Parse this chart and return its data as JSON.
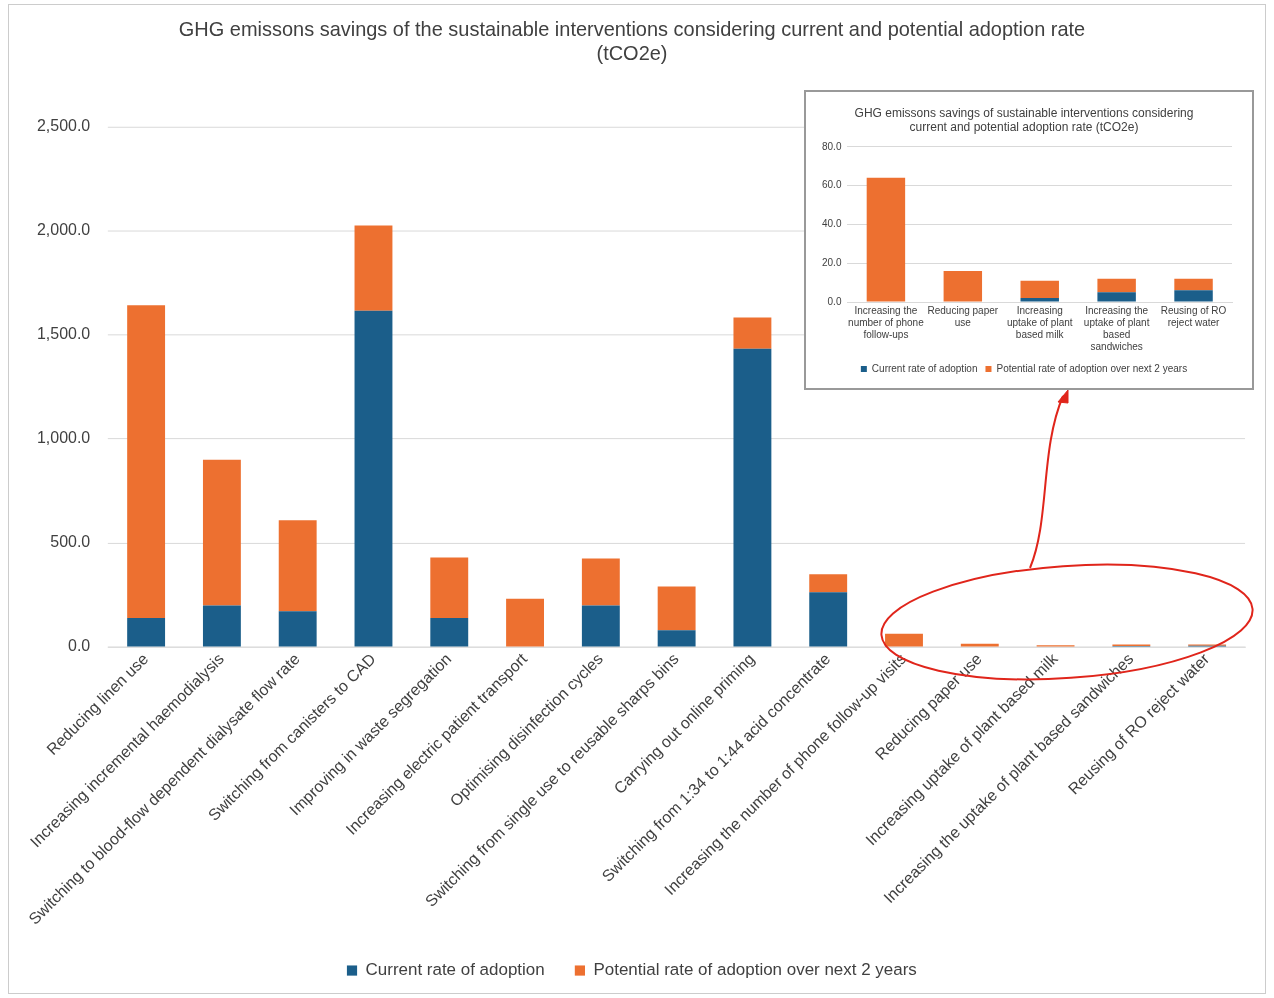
{
  "chart_data": [
    {
      "type": "bar",
      "title": "GHG emissons savings of the sustainable interventions considering current and potential adoption rate (tCO2e)",
      "stacked": true,
      "grid": "y",
      "legend": "bottom",
      "categories": [
        "Reducing linen use",
        "Increasing incremental haemodialysis",
        "Switching to blood-flow dependent dialysate flow rate",
        "Switching from canisters to CAD",
        "Improving in waste segregation",
        "Increasing electric patient transport",
        "Optimising disinfection cycles",
        "Switching from single use to reusable sharps bins",
        "Carrying out online priming",
        "Switching from 1:34 to 1:44 acid concentrate",
        "Increasing the number of phone follow-up visits",
        "Reducing paper use",
        "Increasing uptake of plant based milk",
        "Increasing the uptake of plant based sandwiches",
        "Reusing of RO reject water"
      ],
      "series": [
        {
          "name": "Current rate of adoption",
          "color": "#1b5e8a",
          "values": [
            140,
            200,
            172,
            1616,
            140,
            0,
            200,
            81,
            1433,
            264,
            0,
            0,
            null,
            5,
            6
          ]
        },
        {
          "name": "Potential rate of adoption over next 2 years",
          "color": "#ed7030",
          "values": [
            1503,
            700,
            437,
            410,
            291,
            232,
            226,
            210,
            151,
            86,
            64,
            16,
            9,
            7,
            6
          ]
        }
      ],
      "ylim": [
        0,
        2500
      ],
      "yticks": [
        {
          "value": 0,
          "label": "0.0"
        },
        {
          "value": 500,
          "label": "500.0"
        },
        {
          "value": 1000,
          "label": "1,000.0"
        },
        {
          "value": 1500,
          "label": "1,500.0"
        },
        {
          "value": 2000,
          "label": "2,000.0"
        },
        {
          "value": 2500,
          "label": "2,500.0"
        }
      ]
    },
    {
      "type": "bar",
      "title": "GHG emissons savings of sustainable interventions considering current and potential adoption rate (tCO2e)",
      "stacked": true,
      "grid": "y",
      "legend": "bottom",
      "categories": [
        "Increasing the number of phone follow-ups",
        "Reducing paper use",
        "Increasing uptake of plant based milk",
        "Increasing the uptake of plant based sandwiches",
        "Reusing of RO reject water"
      ],
      "series": [
        {
          "name": "Current rate of adoption",
          "color": "#1b5e8a",
          "values": [
            0,
            0,
            2,
            5,
            6
          ]
        },
        {
          "name": "Potential rate of adoption over next 2 years",
          "color": "#ed7030",
          "values": [
            64,
            16,
            9,
            7,
            6
          ]
        }
      ],
      "ylim": [
        0,
        80
      ],
      "yticks": [
        {
          "value": 0,
          "label": "0.0"
        },
        {
          "value": 20,
          "label": "20.0"
        },
        {
          "value": 40,
          "label": "40.0"
        },
        {
          "value": 60,
          "label": "60.0"
        },
        {
          "value": 80,
          "label": "80.0"
        }
      ]
    }
  ]
}
